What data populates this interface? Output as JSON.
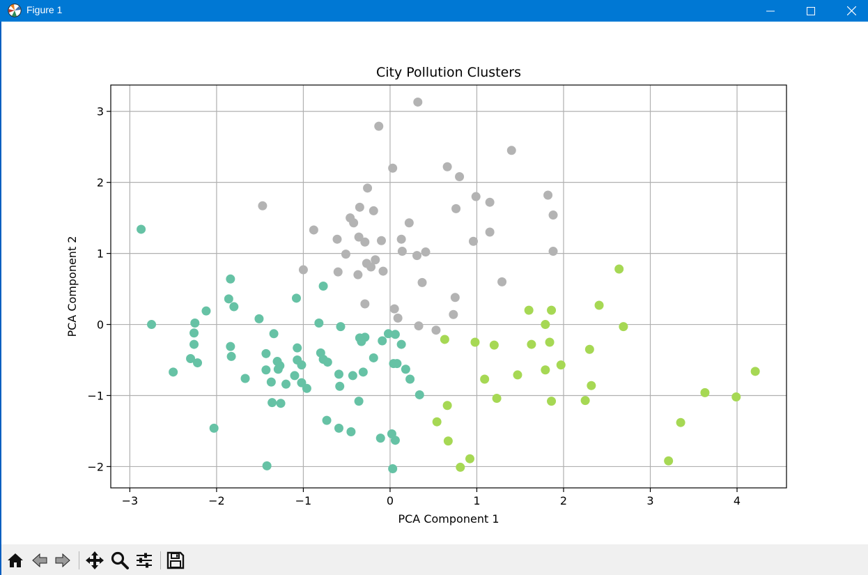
{
  "window": {
    "title": "Figure 1",
    "controls": [
      "minimize",
      "maximize",
      "close"
    ]
  },
  "colors": {
    "titlebar": "#0078d4",
    "toolbar": "#f0f0f0",
    "cluster_teal": "#66c2a5",
    "cluster_lime": "#a6d854",
    "cluster_gray": "#b3b3b3"
  },
  "toolbar": {
    "buttons": [
      {
        "name": "home-button",
        "icon": "home-icon"
      },
      {
        "name": "back-button",
        "icon": "arrow-left-icon"
      },
      {
        "name": "forward-button",
        "icon": "arrow-right-icon"
      },
      {
        "name": "pan-button",
        "icon": "move-icon"
      },
      {
        "name": "zoom-button",
        "icon": "magnifier-icon"
      },
      {
        "name": "configure-subplots-button",
        "icon": "sliders-icon"
      },
      {
        "name": "save-button",
        "icon": "floppy-disk-icon"
      }
    ]
  },
  "chart_data": {
    "type": "scatter",
    "title": "City Pollution Clusters",
    "xlabel": "PCA Component 1",
    "ylabel": "PCA Component 2",
    "xlim": [
      -3.22,
      4.57
    ],
    "ylim": [
      -2.3,
      3.37
    ],
    "xticks": [
      -3,
      -2,
      -1,
      0,
      1,
      2,
      3,
      4
    ],
    "yticks": [
      -2,
      -1,
      0,
      1,
      2,
      3
    ],
    "grid": true,
    "series": [
      {
        "color": "#66c2a5",
        "points": [
          [
            -2.87,
            1.34
          ],
          [
            -2.75,
            0.0
          ],
          [
            -2.5,
            -0.67
          ],
          [
            -2.3,
            -0.48
          ],
          [
            -2.25,
            0.02
          ],
          [
            -2.26,
            -0.12
          ],
          [
            -2.26,
            -0.28
          ],
          [
            -2.22,
            -0.54
          ],
          [
            -2.12,
            0.19
          ],
          [
            -2.03,
            -1.46
          ],
          [
            -1.86,
            0.36
          ],
          [
            -1.84,
            0.64
          ],
          [
            -1.84,
            -0.31
          ],
          [
            -1.83,
            -0.45
          ],
          [
            -1.8,
            0.25
          ],
          [
            -1.67,
            -0.76
          ],
          [
            -1.51,
            0.08
          ],
          [
            -1.43,
            -0.41
          ],
          [
            -1.43,
            -0.64
          ],
          [
            -1.42,
            -1.99
          ],
          [
            -1.37,
            -0.81
          ],
          [
            -1.36,
            -1.1
          ],
          [
            -1.34,
            -0.13
          ],
          [
            -1.3,
            -0.52
          ],
          [
            -1.29,
            -0.63
          ],
          [
            -1.27,
            -0.58
          ],
          [
            -1.26,
            -1.11
          ],
          [
            -1.2,
            -0.84
          ],
          [
            -1.1,
            -0.72
          ],
          [
            -1.08,
            0.37
          ],
          [
            -1.07,
            -0.33
          ],
          [
            -1.07,
            -0.5
          ],
          [
            -1.02,
            -0.57
          ],
          [
            -1.02,
            -0.82
          ],
          [
            -0.96,
            -0.9
          ],
          [
            -0.82,
            0.02
          ],
          [
            -0.8,
            -0.4
          ],
          [
            -0.77,
            0.54
          ],
          [
            -0.77,
            -0.49
          ],
          [
            -0.72,
            -0.53
          ],
          [
            -0.73,
            -1.35
          ],
          [
            -0.59,
            -0.7
          ],
          [
            -0.58,
            -0.87
          ],
          [
            -0.59,
            -1.46
          ],
          [
            -0.57,
            -0.03
          ],
          [
            -0.45,
            -1.51
          ],
          [
            -0.43,
            -0.72
          ],
          [
            -0.36,
            -1.08
          ],
          [
            -0.35,
            -0.19
          ],
          [
            -0.33,
            -0.24
          ],
          [
            -0.31,
            -0.67
          ],
          [
            -0.29,
            -0.18
          ],
          [
            -0.19,
            -0.47
          ],
          [
            -0.11,
            -1.6
          ],
          [
            -0.09,
            -0.23
          ],
          [
            -0.02,
            -0.13
          ],
          [
            0.02,
            -1.54
          ],
          [
            0.03,
            -2.03
          ],
          [
            0.04,
            -0.55
          ],
          [
            0.06,
            -0.14
          ],
          [
            0.06,
            -1.63
          ],
          [
            0.08,
            -0.55
          ],
          [
            0.13,
            -0.28
          ],
          [
            0.18,
            -0.63
          ],
          [
            0.23,
            -0.77
          ],
          [
            0.34,
            -0.99
          ]
        ]
      },
      {
        "color": "#a6d854",
        "points": [
          [
            0.54,
            -1.37
          ],
          [
            0.63,
            -0.21
          ],
          [
            0.66,
            -1.14
          ],
          [
            0.67,
            -1.64
          ],
          [
            0.81,
            -2.01
          ],
          [
            0.92,
            -1.89
          ],
          [
            0.98,
            -0.25
          ],
          [
            1.09,
            -0.77
          ],
          [
            1.2,
            -0.29
          ],
          [
            1.23,
            -1.04
          ],
          [
            1.47,
            -0.71
          ],
          [
            1.6,
            0.2
          ],
          [
            1.63,
            -0.28
          ],
          [
            1.79,
            0.0
          ],
          [
            1.79,
            -0.64
          ],
          [
            1.84,
            -0.25
          ],
          [
            1.86,
            0.2
          ],
          [
            1.86,
            -1.08
          ],
          [
            1.97,
            -0.57
          ],
          [
            2.25,
            -1.07
          ],
          [
            2.3,
            -0.35
          ],
          [
            2.32,
            -0.86
          ],
          [
            2.41,
            0.27
          ],
          [
            2.64,
            0.78
          ],
          [
            2.69,
            -0.03
          ],
          [
            3.21,
            -1.92
          ],
          [
            3.35,
            -1.38
          ],
          [
            3.63,
            -0.96
          ],
          [
            3.99,
            -1.02
          ],
          [
            4.21,
            -0.66
          ]
        ]
      },
      {
        "color": "#b3b3b3",
        "points": [
          [
            0.32,
            3.13
          ],
          [
            -0.13,
            2.79
          ],
          [
            0.03,
            2.2
          ],
          [
            0.66,
            2.22
          ],
          [
            0.8,
            2.08
          ],
          [
            1.4,
            2.45
          ],
          [
            -0.26,
            1.92
          ],
          [
            -1.47,
            1.67
          ],
          [
            -0.35,
            1.65
          ],
          [
            -0.19,
            1.6
          ],
          [
            0.76,
            1.63
          ],
          [
            0.99,
            1.8
          ],
          [
            1.15,
            1.72
          ],
          [
            1.82,
            1.82
          ],
          [
            1.88,
            1.54
          ],
          [
            -0.46,
            1.5
          ],
          [
            -0.42,
            1.43
          ],
          [
            0.22,
            1.43
          ],
          [
            -0.88,
            1.33
          ],
          [
            1.15,
            1.3
          ],
          [
            -0.61,
            1.2
          ],
          [
            -0.36,
            1.23
          ],
          [
            -0.29,
            1.16
          ],
          [
            -0.1,
            1.18
          ],
          [
            0.13,
            1.2
          ],
          [
            0.96,
            1.17
          ],
          [
            -0.51,
            0.99
          ],
          [
            0.14,
            1.03
          ],
          [
            0.31,
            0.97
          ],
          [
            0.41,
            1.02
          ],
          [
            1.88,
            1.03
          ],
          [
            -0.27,
            0.86
          ],
          [
            -0.17,
            0.91
          ],
          [
            -0.22,
            0.81
          ],
          [
            -1.0,
            0.77
          ],
          [
            -0.6,
            0.74
          ],
          [
            -0.37,
            0.7
          ],
          [
            -0.08,
            0.75
          ],
          [
            0.37,
            0.59
          ],
          [
            1.29,
            0.6
          ],
          [
            -0.29,
            0.29
          ],
          [
            0.75,
            0.38
          ],
          [
            0.05,
            0.22
          ],
          [
            0.09,
            0.09
          ],
          [
            0.73,
            0.14
          ],
          [
            0.33,
            -0.02
          ],
          [
            0.53,
            -0.08
          ]
        ]
      }
    ]
  }
}
